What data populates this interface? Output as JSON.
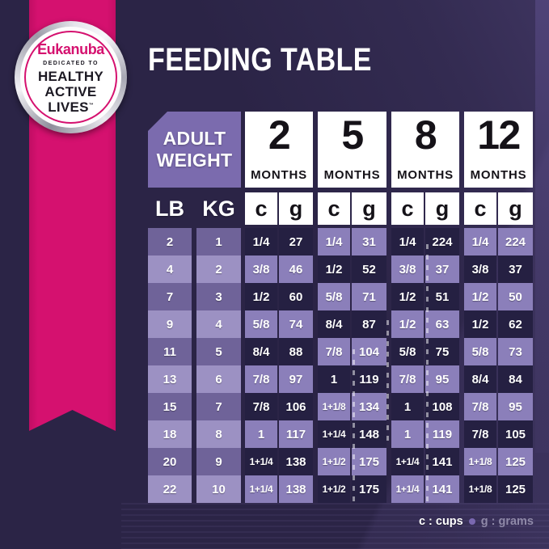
{
  "title": "FEEDING TABLE",
  "badge": {
    "brand": "Eukanuba",
    "tagline": "DEDICATED TO",
    "line1": "HEALTHY",
    "line2": "ACTIVE",
    "line3": "LIVES",
    "trademark": "™"
  },
  "header": {
    "adult_line1": "ADULT",
    "adult_line2": "WEIGHT",
    "lb": "LB",
    "kg": "KG",
    "months": [
      {
        "number": "2",
        "label": "MONTHS"
      },
      {
        "number": "5",
        "label": "MONTHS"
      },
      {
        "number": "8",
        "label": "MONTHS"
      },
      {
        "number": "12",
        "label": "MONTHS"
      }
    ],
    "units": [
      "c",
      "g"
    ]
  },
  "legend": {
    "cups": "c : cups",
    "grams": "g : grams"
  },
  "colors": {
    "background": "#2b2446",
    "ribbon_pink": "#d5116f",
    "adult_weight_box": "#7b6bae",
    "cell_dark": "#252042",
    "cell_lavender": "#8b7fba",
    "weight_col_medium": "#6f6399",
    "weight_col_light": "#9c91c3",
    "legend_muted": "#8f89a8",
    "header_box_white": "#ffffff"
  },
  "chart_data": {
    "type": "table",
    "title": "FEEDING TABLE",
    "column_groups": [
      "ADULT WEIGHT",
      "2 MONTHS",
      "5 MONTHS",
      "8 MONTHS",
      "12 MONTHS"
    ],
    "columns": [
      "LB",
      "KG",
      "2mo c",
      "2mo g",
      "5mo c",
      "5mo g",
      "8mo c",
      "8mo g",
      "12mo c",
      "12mo g"
    ],
    "units_legend": {
      "c": "cups",
      "g": "grams"
    },
    "rows": [
      [
        "2",
        "1",
        "1/4",
        "27",
        "1/4",
        "31",
        "1/4",
        "224",
        "1/4",
        "224"
      ],
      [
        "4",
        "2",
        "3/8",
        "46",
        "1/2",
        "52",
        "3/8",
        "37",
        "3/8",
        "37"
      ],
      [
        "7",
        "3",
        "1/2",
        "60",
        "5/8",
        "71",
        "1/2",
        "51",
        "1/2",
        "50"
      ],
      [
        "9",
        "4",
        "5/8",
        "74",
        "8/4",
        "87",
        "1/2",
        "63",
        "1/2",
        "62"
      ],
      [
        "11",
        "5",
        "8/4",
        "88",
        "7/8",
        "104",
        "5/8",
        "75",
        "5/8",
        "73"
      ],
      [
        "13",
        "6",
        "7/8",
        "97",
        "1",
        "119",
        "7/8",
        "95",
        "8/4",
        "84"
      ],
      [
        "15",
        "7",
        "7/8",
        "106",
        "1+1/8",
        "134",
        "1",
        "108",
        "7/8",
        "95"
      ],
      [
        "18",
        "8",
        "1",
        "117",
        "1+1/4",
        "148",
        "1",
        "119",
        "7/8",
        "105"
      ],
      [
        "20",
        "9",
        "1+1/4",
        "138",
        "1+1/2",
        "175",
        "1+1/4",
        "141",
        "1+1/8",
        "125"
      ],
      [
        "22",
        "10",
        "1+1/4",
        "138",
        "1+1/2",
        "175",
        "1+1/4",
        "141",
        "1+1/8",
        "125"
      ]
    ]
  }
}
